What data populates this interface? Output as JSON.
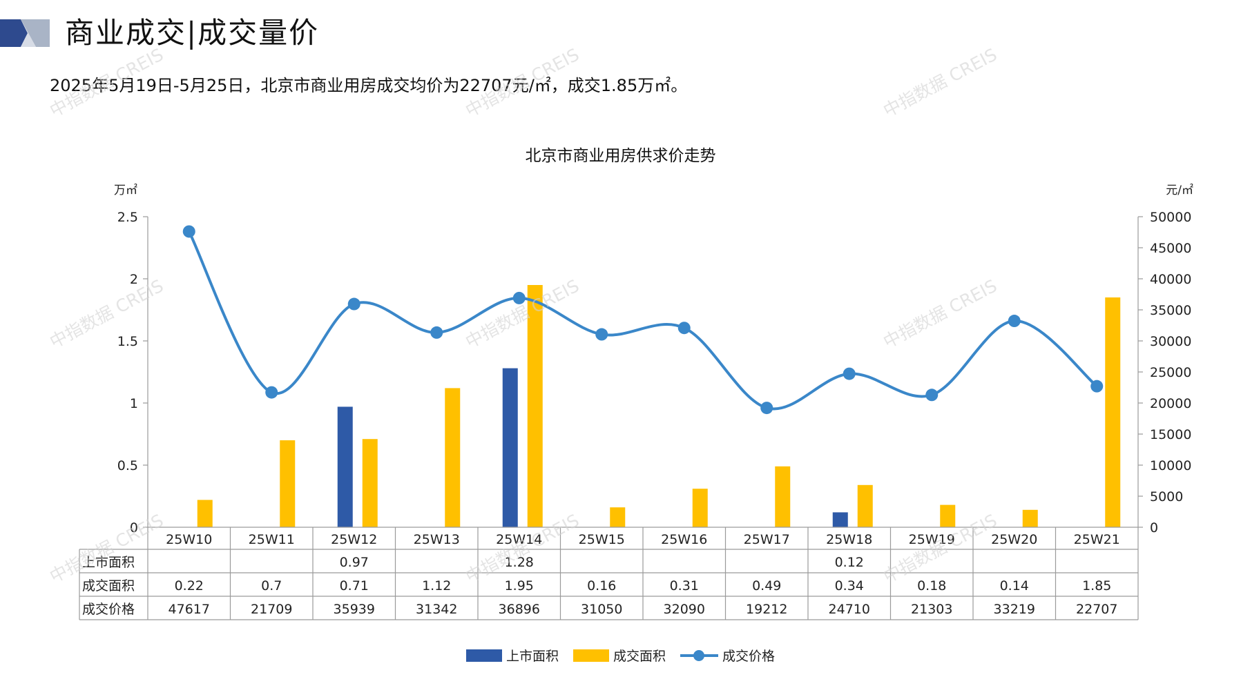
{
  "header": {
    "title": "商业成交|成交量价"
  },
  "summary": {
    "text": "2025年5月19日-5月25日，北京市商业用房成交均价为22707元/㎡，成交1.85万㎡。"
  },
  "watermark": {
    "text": "中指数据 CREIS"
  },
  "colors": {
    "supply": "#2e5aa7",
    "deal_area": "#ffc000",
    "price": "#3a87c9",
    "header_dark": "#2e4a8e",
    "header_light": "#a9b4c6"
  },
  "chart_data": {
    "type": "bar+line",
    "title": "北京市商业用房供求价走势",
    "y_left_unit": "万㎡",
    "y_right_unit": "元/㎡",
    "y_left_ticks": [
      "2.5",
      "2",
      "1.5",
      "1",
      "0.5",
      "0"
    ],
    "y_right_ticks": [
      "50000",
      "45000",
      "40000",
      "35000",
      "30000",
      "25000",
      "20000",
      "15000",
      "10000",
      "5000",
      "0"
    ],
    "ylim_left": [
      0,
      2.5
    ],
    "ylim_right": [
      0,
      50000
    ],
    "categories": [
      "25W10",
      "25W11",
      "25W12",
      "25W13",
      "25W14",
      "25W15",
      "25W16",
      "25W17",
      "25W18",
      "25W19",
      "25W20",
      "25W21"
    ],
    "series": [
      {
        "name": "上市面积",
        "type": "bar",
        "axis": "left",
        "values": [
          null,
          null,
          0.97,
          null,
          1.28,
          null,
          null,
          null,
          0.12,
          null,
          null,
          null
        ],
        "labels": [
          "",
          "",
          "0.97",
          "",
          "1.28",
          "",
          "",
          "",
          "0.12",
          "",
          "",
          ""
        ]
      },
      {
        "name": "成交面积",
        "type": "bar",
        "axis": "left",
        "values": [
          0.22,
          0.7,
          0.71,
          1.12,
          1.95,
          0.16,
          0.31,
          0.49,
          0.34,
          0.18,
          0.14,
          1.85
        ],
        "labels": [
          "0.22",
          "0.7",
          "0.71",
          "1.12",
          "1.95",
          "0.16",
          "0.31",
          "0.49",
          "0.34",
          "0.18",
          "0.14",
          "1.85"
        ]
      },
      {
        "name": "成交价格",
        "type": "line",
        "axis": "right",
        "values": [
          47617,
          21709,
          35939,
          31342,
          36896,
          31050,
          32090,
          19212,
          24710,
          21303,
          33219,
          22707
        ],
        "labels": [
          "47617",
          "21709",
          "35939",
          "31342",
          "36896",
          "31050",
          "32090",
          "19212",
          "24710",
          "21303",
          "33219",
          "22707"
        ]
      }
    ],
    "legend_position": "bottom",
    "data_table": true
  }
}
